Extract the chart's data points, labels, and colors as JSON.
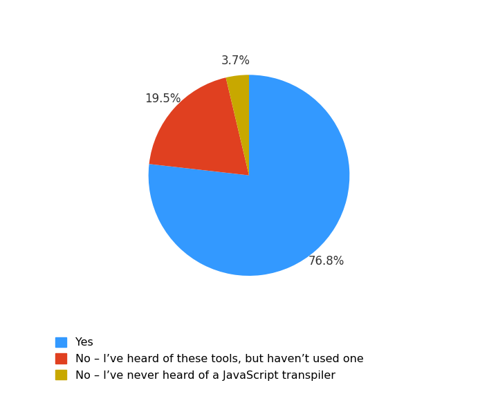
{
  "slices": [
    76.8,
    19.5,
    3.7
  ],
  "labels": [
    "Yes",
    "No – I’ve heard of these tools, but haven’t used one",
    "No – I’ve never heard of a JavaScript transpiler"
  ],
  "colors": [
    "#3399FF",
    "#E04020",
    "#C8A800"
  ],
  "autopct_labels": [
    "76.8%",
    "19.5%",
    "3.7%"
  ],
  "background_color": "#ffffff",
  "startangle": 90,
  "legend_fontsize": 11.5,
  "autopct_fontsize": 12,
  "text_color": "#333333"
}
